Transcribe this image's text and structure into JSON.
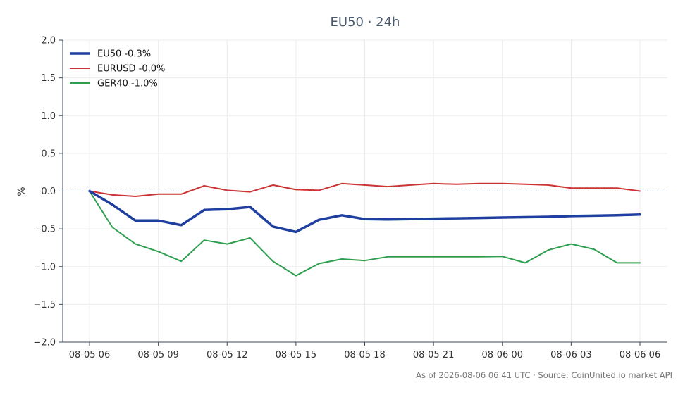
{
  "chart_data": {
    "type": "line",
    "title": "EU50 · 24h",
    "ylabel": "%",
    "xlabel": "",
    "ylim": [
      -2.0,
      2.0
    ],
    "yticks": [
      2.0,
      1.5,
      1.0,
      0.5,
      0.0,
      -0.5,
      -1.0,
      -1.5,
      -2.0
    ],
    "ytick_labels": [
      "2.0",
      "1.5",
      "1.0",
      "0.5",
      "0.0",
      "−0.5",
      "−1.0",
      "−1.5",
      "−2.0"
    ],
    "xticks": [
      "08-05 06",
      "08-05 09",
      "08-05 12",
      "08-05 15",
      "08-05 18",
      "08-05 21",
      "08-06 00",
      "08-06 03",
      "08-06 06"
    ],
    "x": [
      "08-05 06",
      "08-05 07",
      "08-05 08",
      "08-05 09",
      "08-05 10",
      "08-05 11",
      "08-05 12",
      "08-05 13",
      "08-05 14",
      "08-05 15",
      "08-05 16",
      "08-05 17",
      "08-05 18",
      "08-05 19",
      "08-05 20",
      "08-05 21",
      "08-05 22",
      "08-05 23",
      "08-06 00",
      "08-06 01",
      "08-06 02",
      "08-06 03",
      "08-06 04",
      "08-06 05",
      "08-06 06"
    ],
    "grid": true,
    "legend_position": "top-left",
    "zero_line": true,
    "series": [
      {
        "name": "EU50 -0.3%",
        "color": "#1f3fa0",
        "width": "thick",
        "values": [
          0.0,
          -0.18,
          -0.39,
          -0.39,
          -0.45,
          -0.25,
          -0.24,
          -0.21,
          -0.47,
          -0.54,
          -0.38,
          -0.32,
          -0.37,
          -0.375,
          -0.37,
          -0.365,
          -0.36,
          -0.355,
          -0.35,
          -0.345,
          -0.34,
          -0.33,
          -0.325,
          -0.32,
          -0.31
        ]
      },
      {
        "name": "EURUSD -0.0%",
        "color": "#cc3333",
        "width": "normal",
        "values": [
          0.0,
          -0.05,
          -0.07,
          -0.04,
          -0.04,
          0.07,
          0.01,
          -0.01,
          0.08,
          0.02,
          0.01,
          0.1,
          0.08,
          0.06,
          0.08,
          0.1,
          0.09,
          0.1,
          0.1,
          0.09,
          0.08,
          0.04,
          0.04,
          0.04,
          0.0
        ]
      },
      {
        "name": "GER40 -1.0%",
        "color": "#2e9e4f",
        "width": "normal",
        "values": [
          0.0,
          -0.48,
          -0.7,
          -0.8,
          -0.93,
          -0.65,
          -0.7,
          -0.62,
          -0.93,
          -1.12,
          -0.96,
          -0.9,
          -0.92,
          -0.87,
          -0.87,
          -0.87,
          -0.87,
          -0.87,
          -0.865,
          -0.95,
          -0.78,
          -0.7,
          -0.77,
          -0.95,
          -0.95
        ]
      }
    ]
  },
  "footer": "As of 2026-08-06 06:41 UTC · Source: CoinUnited.io market API"
}
